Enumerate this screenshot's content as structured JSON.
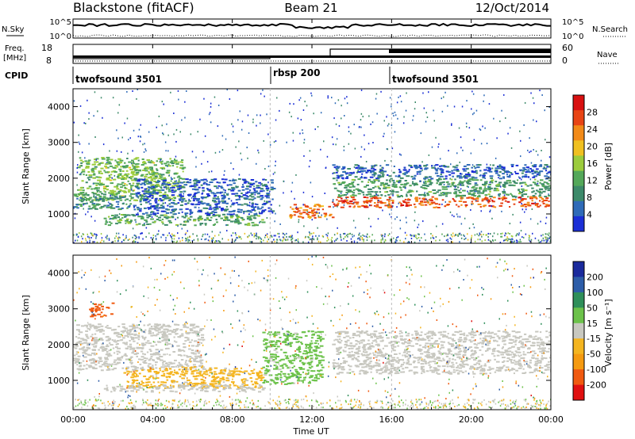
{
  "header": {
    "station": "Blackstone (fitACF)",
    "beam": "Beam 21",
    "date": "12/Oct/2014"
  },
  "noise_panel": {
    "left_label": "N.Sky",
    "right_label": "N.Search",
    "left_ticks": [
      "10^5",
      "10^0"
    ],
    "right_ticks": [
      "10^5",
      "10^0"
    ]
  },
  "freq_panel": {
    "label_line1": "Freq.",
    "label_line2": "[MHz]",
    "left_ticks": [
      "18",
      "8"
    ],
    "right_label": "Nave",
    "right_ticks": [
      "60",
      "0"
    ]
  },
  "cpid": {
    "label": "CPID",
    "segments": [
      {
        "name": "twofsound 3501",
        "start_hour": 0
      },
      {
        "name": "rbsp 200",
        "start_hour": 9.9
      },
      {
        "name": "twofsound 3501",
        "start_hour": 16
      }
    ]
  },
  "power_panel": {
    "ylabel": "Slant Range [km]",
    "yticks": [
      "1000",
      "2000",
      "3000",
      "4000"
    ],
    "colorbar_title": "Power [dB]",
    "colorbar_ticks": [
      "28",
      "24",
      "20",
      "16",
      "12",
      "8",
      "4"
    ]
  },
  "velocity_panel": {
    "ylabel": "Slant Range [km]",
    "yticks": [
      "1000",
      "2000",
      "3000",
      "4000"
    ],
    "colorbar_title": "Velocity [m s⁻¹]",
    "colorbar_ticks": [
      "200",
      "100",
      "50",
      "15",
      "-15",
      "-50",
      "-100",
      "-200"
    ]
  },
  "xaxis": {
    "label": "Time UT",
    "ticks": [
      "00:00",
      "04:00",
      "08:00",
      "12:00",
      "16:00",
      "20:00",
      "00:00"
    ]
  },
  "chart_data": {
    "type": "heatmap",
    "title": "Blackstone (fitACF)",
    "xlabel": "Time UT",
    "ylabel": "Slant Range [km]",
    "xlim_hours": [
      0,
      24
    ],
    "ylim_km": [
      180,
      4500
    ],
    "power_scale_db": [
      0,
      32
    ],
    "velocity_scale_ms": [
      -250,
      250
    ],
    "power_colors": [
      "#1b2fd6",
      "#2f6bb8",
      "#3d8a6a",
      "#54a85a",
      "#9ccc3c",
      "#f0c020",
      "#f28a18",
      "#e84414",
      "#d81010"
    ],
    "velocity_colors": [
      "#e01010",
      "#f05a10",
      "#f59a10",
      "#f4b520",
      "#c8c8c0",
      "#6cc24a",
      "#2f8f5a",
      "#2d5da8",
      "#1a2a9c"
    ],
    "power_regions": [
      {
        "label": "slanted band 1400-2600 km",
        "t": [
          0.2,
          5.5
        ],
        "r": [
          1400,
          2600
        ],
        "db": 14
      },
      {
        "label": "band 1100-1600 km",
        "t": [
          0.0,
          3.0
        ],
        "r": [
          1150,
          1600
        ],
        "db": 10
      },
      {
        "label": "low band 700-1000 km",
        "t": [
          1.5,
          9.5
        ],
        "r": [
          700,
          1000
        ],
        "db": 12
      },
      {
        "label": "scatter 1000-2000 km",
        "t": [
          3.0,
          10.0
        ],
        "r": [
          1000,
          2000
        ],
        "db": 5
      },
      {
        "label": "strong band 900-1300 km",
        "t": [
          10.8,
          13.0
        ],
        "r": [
          900,
          1300
        ],
        "db": 24
      },
      {
        "label": "afternoon main echo 1200-1500 km",
        "t": [
          13.0,
          24.0
        ],
        "r": [
          1200,
          1500
        ],
        "db": 26
      },
      {
        "label": "afternoon 1500-2000 km",
        "t": [
          13.0,
          24.0
        ],
        "r": [
          1500,
          2000
        ],
        "db": 11
      },
      {
        "label": "afternoon top 2000-2400 km",
        "t": [
          13.0,
          24.0
        ],
        "r": [
          2000,
          2400
        ],
        "db": 5
      }
    ],
    "velocity_regions": [
      {
        "label": "grey band 1300-2600 km",
        "t": [
          0.0,
          6.5
        ],
        "r": [
          1300,
          2600
        ],
        "ms": 0
      },
      {
        "label": "orange patch 800-1400 km",
        "t": [
          2.5,
          9.5
        ],
        "r": [
          800,
          1400
        ],
        "ms": -40
      },
      {
        "label": "grey low band 700-900 km",
        "t": [
          1.5,
          9.5
        ],
        "r": [
          700,
          900
        ],
        "ms": 0
      },
      {
        "label": "green descending feature",
        "t": [
          9.5,
          12.5
        ],
        "r": [
          900,
          2400
        ],
        "ms": 40
      },
      {
        "label": "afternoon grey 1200-2400 km",
        "t": [
          13.0,
          24.0
        ],
        "r": [
          1200,
          2400
        ],
        "ms": 0
      },
      {
        "label": "red patch 2800-3200 km",
        "t": [
          0.8,
          2.0
        ],
        "r": [
          2800,
          3200
        ],
        "ms": -180
      }
    ]
  }
}
